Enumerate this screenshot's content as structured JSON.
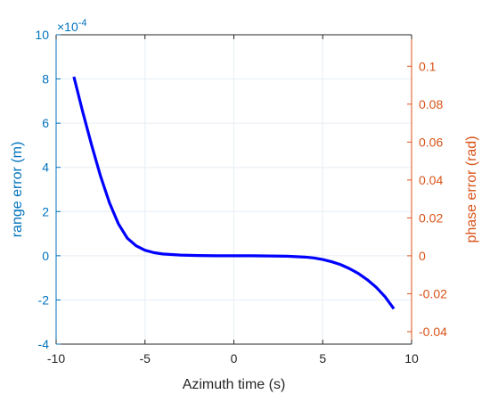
{
  "chart_data": {
    "type": "line",
    "xlabel": "Azimuth time (s)",
    "ylabel_left": "range error (m)",
    "ylabel_right": "phase error (rad)",
    "left_axis_exponent_text": "×10",
    "left_axis_exponent_power": "-4",
    "xlim": [
      -10,
      10
    ],
    "ylim_left": [
      -4,
      10
    ],
    "ylim_right": [
      -0.0466,
      0.1166
    ],
    "x_ticks": [
      -10,
      -5,
      0,
      5,
      10
    ],
    "x_tick_labels": [
      "-10",
      "-5",
      "0",
      "5",
      "10"
    ],
    "y_left_ticks": [
      -4,
      -2,
      0,
      2,
      4,
      6,
      8,
      10
    ],
    "y_left_tick_labels": [
      "-4",
      "-2",
      "0",
      "2",
      "4",
      "6",
      "8",
      "10"
    ],
    "y_right_ticks": [
      -0.04,
      -0.02,
      0,
      0.02,
      0.04,
      0.06,
      0.08,
      0.1
    ],
    "y_right_tick_labels": [
      "-0.04",
      "-0.02",
      "0",
      "0.02",
      "0.04",
      "0.06",
      "0.08",
      "0.1"
    ],
    "grid": true,
    "colors": {
      "series": "#0000ff",
      "left_axis": "#0072bd",
      "right_axis": "#d95319",
      "grid": "#e6eef4",
      "x_axis": "#262626"
    },
    "series": [
      {
        "axis": "left",
        "x": [
          -9,
          -8.5,
          -8,
          -7.5,
          -7,
          -6.5,
          -6,
          -5.5,
          -5,
          -4.5,
          -4,
          -3,
          -2,
          -1,
          0,
          1,
          2,
          3,
          4,
          4.5,
          5,
          5.5,
          6,
          6.5,
          7,
          7.5,
          8,
          8.5,
          9
        ],
        "y": [
          8.1,
          6.5,
          5.0,
          3.6,
          2.4,
          1.45,
          0.8,
          0.45,
          0.25,
          0.14,
          0.08,
          0.03,
          0.01,
          0.0,
          0.0,
          0.0,
          -0.01,
          -0.02,
          -0.06,
          -0.1,
          -0.17,
          -0.27,
          -0.4,
          -0.58,
          -0.8,
          -1.08,
          -1.42,
          -1.85,
          -2.4
        ]
      }
    ]
  }
}
